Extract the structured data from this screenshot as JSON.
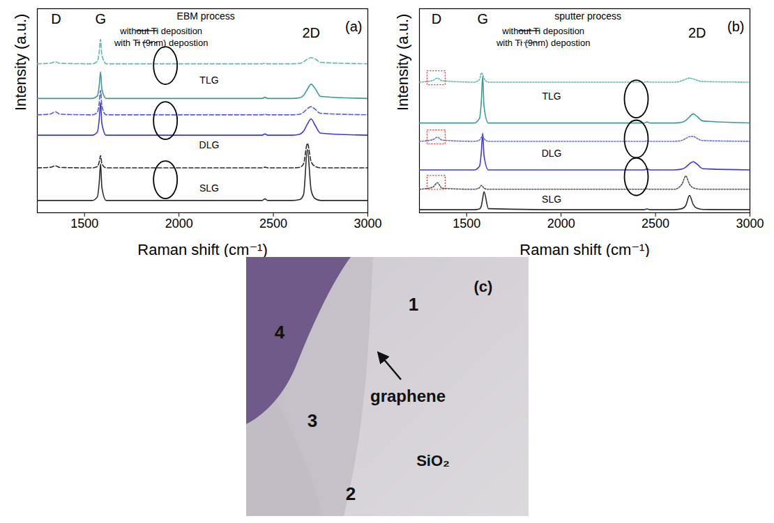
{
  "chart_data": [
    {
      "type": "line",
      "panel": "(a)",
      "subtitle": "EBM process",
      "xlabel": "Raman shift (cm⁻¹)",
      "ylabel": "Intensity (a.u.)",
      "x": [
        1250,
        1320,
        1345,
        1370,
        1540,
        1568,
        1578,
        1585,
        1592,
        1615,
        2000,
        2440,
        2455,
        2470,
        2600,
        2640,
        2660,
        2680,
        2700,
        2720,
        2750,
        3000
      ],
      "xlim": [
        1250,
        3000
      ],
      "xticks": [
        1500,
        2000,
        2500,
        3000
      ],
      "ylim": [
        0,
        100
      ],
      "tick_labels": "x",
      "grid": false,
      "legend": "top",
      "series": [
        {
          "name": "without Ti deposition",
          "group": "SLG",
          "color": "#2b2b2b",
          "line_style": "solid",
          "values": [
            6,
            6,
            6,
            6,
            6,
            7.8,
            15,
            24,
            12.3,
            6,
            6,
            6,
            6.8,
            6,
            6,
            6.5,
            9,
            31,
            11,
            7,
            6,
            6
          ]
        },
        {
          "name": "with Ti (9nm) depostion",
          "group": "SLG",
          "color": "#2b2b2b",
          "line_style": "dashed",
          "values": [
            22,
            22.3,
            23,
            22.2,
            22,
            22.6,
            25,
            28,
            24,
            22,
            22,
            22,
            22.3,
            22,
            22,
            22.3,
            24,
            34,
            25,
            22.8,
            22,
            22
          ]
        },
        {
          "name": "without Ti deposition",
          "group": "DLG",
          "color": "#3a3ad6",
          "line_style": "solid",
          "values": [
            38,
            38,
            38,
            38,
            38,
            39.6,
            46,
            54,
            43.6,
            38,
            38,
            38,
            38.6,
            38,
            38,
            38.5,
            40,
            43.5,
            46,
            43,
            39,
            38
          ]
        },
        {
          "name": "with Ti (9nm) depostion",
          "group": "DLG",
          "color": "#5a5ae2",
          "line_style": "dashed",
          "values": [
            48,
            48.4,
            49.5,
            48.3,
            48,
            49.2,
            54,
            60,
            52.2,
            48,
            48,
            48,
            48.3,
            48,
            48,
            48.3,
            49.3,
            51,
            52,
            50.8,
            48.7,
            48
          ]
        },
        {
          "name": "without Ti deposition",
          "group": "TLG",
          "color": "#3a9a94",
          "line_style": "solid",
          "values": [
            56,
            56,
            56,
            56,
            56,
            57.3,
            62.5,
            69,
            60.5,
            56,
            56,
            56,
            56.6,
            56,
            56,
            56.4,
            57.5,
            60.5,
            63,
            61,
            57,
            56
          ]
        },
        {
          "name": "with Ti (9nm) depostion",
          "group": "TLG",
          "color": "#5fb8b0",
          "line_style": "dashed",
          "values": [
            73,
            73.3,
            74,
            73.2,
            73,
            74.2,
            79,
            85,
            77.2,
            73,
            73,
            73,
            73.2,
            73,
            73,
            73.2,
            74,
            75.3,
            76,
            75.4,
            73.7,
            73
          ]
        }
      ],
      "annotations": [
        {
          "text": "D",
          "x": 1350,
          "y": 95
        },
        {
          "text": "G",
          "x": 1585,
          "y": 95
        },
        {
          "text": "2D",
          "x": 2700,
          "y": 88
        }
      ],
      "group_labels": [
        {
          "text": "TLG",
          "x": 2160,
          "y": 65
        },
        {
          "text": "DLG",
          "x": 2160,
          "y": 33
        },
        {
          "text": "SLG",
          "x": 2160,
          "y": 12
        }
      ],
      "ellipses": [
        {
          "x": 1930,
          "y": 72
        },
        {
          "x": 1930,
          "y": 45
        },
        {
          "x": 1930,
          "y": 16
        }
      ],
      "highlights": []
    },
    {
      "type": "line",
      "panel": "(b)",
      "subtitle": "sputter process",
      "xlabel": "Raman shift (cm⁻¹)",
      "ylabel": "Intensity (a.u.)",
      "x": [
        1250,
        1320,
        1345,
        1370,
        1540,
        1568,
        1578,
        1585,
        1592,
        1615,
        2000,
        2440,
        2455,
        2470,
        2600,
        2640,
        2660,
        2680,
        2700,
        2720,
        2750,
        3000
      ],
      "xlim": [
        1250,
        3000
      ],
      "xticks": [
        1500,
        2000,
        2500,
        3000
      ],
      "ylim": [
        0,
        100
      ],
      "tick_labels": "x",
      "grid": false,
      "legend": "top",
      "series": [
        {
          "name": "without Ti deposition",
          "group": "SLG",
          "color": "#2b2b2b",
          "line_style": "solid",
          "values": [
            1.5,
            1.5,
            1.5,
            1.5,
            1.5,
            1.9,
            3.5,
            7,
            10.3,
            2,
            1.5,
            1.5,
            1.9,
            1.5,
            1.5,
            2,
            3.5,
            8.5,
            4,
            2.2,
            1.6,
            1.5
          ]
        },
        {
          "name": "with Ti (9nm) depostion",
          "group": "SLG",
          "color": "#555555",
          "line_style": "dotted",
          "values": [
            11.5,
            12.5,
            14.7,
            12,
            11.5,
            12.3,
            13.4,
            12.8,
            12,
            11.5,
            11.5,
            11.5,
            11.7,
            11.5,
            11.5,
            14,
            18,
            14,
            12.2,
            11.7,
            11.5,
            11.5
          ]
        },
        {
          "name": "without Ti deposition",
          "group": "DLG",
          "color": "#3a3ad6",
          "line_style": "solid",
          "values": [
            21,
            21,
            21,
            21,
            21,
            22.8,
            30,
            39,
            28,
            21,
            21,
            21,
            21.5,
            21,
            21,
            21.4,
            22.3,
            24,
            25,
            23.8,
            21.6,
            21
          ]
        },
        {
          "name": "with Ti (9nm) depostion",
          "group": "DLG",
          "color": "#6b6be8",
          "line_style": "dotted",
          "values": [
            35,
            35.8,
            37,
            35.6,
            35,
            35.6,
            37,
            37.5,
            36.4,
            35,
            35,
            35,
            35.2,
            35,
            35,
            35.5,
            36.4,
            37.3,
            37.4,
            36.4,
            35.4,
            35
          ]
        },
        {
          "name": "without Ti deposition",
          "group": "TLG",
          "color": "#3a9a94",
          "line_style": "solid",
          "values": [
            44,
            44,
            44,
            44,
            44,
            46.3,
            55,
            67,
            52,
            44,
            44,
            44,
            44.5,
            44,
            44,
            44.4,
            45.2,
            47,
            48.5,
            47.2,
            45,
            44
          ]
        },
        {
          "name": "with Ti (9nm) depostion",
          "group": "TLG",
          "color": "#5fb8b0",
          "line_style": "dotted",
          "values": [
            64,
            64.8,
            66,
            64.7,
            64,
            65.3,
            68.5,
            67.6,
            65.8,
            64,
            64,
            64,
            64.2,
            64,
            64,
            64.7,
            65.5,
            66,
            65.6,
            64.9,
            64.3,
            64
          ]
        }
      ],
      "annotations": [
        {
          "text": "D",
          "x": 1340,
          "y": 95
        },
        {
          "text": "G",
          "x": 1585,
          "y": 95
        },
        {
          "text": "2D",
          "x": 2720,
          "y": 88
        }
      ],
      "group_labels": [
        {
          "text": "TLG",
          "x": 1950,
          "y": 57
        },
        {
          "text": "DLG",
          "x": 1950,
          "y": 29
        },
        {
          "text": "SLG",
          "x": 1950,
          "y": 6.5
        }
      ],
      "ellipses": [
        {
          "x": 2400,
          "y": 55.6
        },
        {
          "x": 2400,
          "y": 36
        },
        {
          "x": 2400,
          "y": 17.5
        }
      ],
      "highlights": [
        {
          "x": 1340,
          "y": 14.7
        },
        {
          "x": 1340,
          "y": 37
        },
        {
          "x": 1340,
          "y": 66
        }
      ]
    }
  ],
  "image": {
    "panel": "(c)",
    "regions": [
      "1",
      "2",
      "3",
      "4"
    ],
    "arrow_label": "graphene",
    "substrate_label": "SiO₂"
  }
}
